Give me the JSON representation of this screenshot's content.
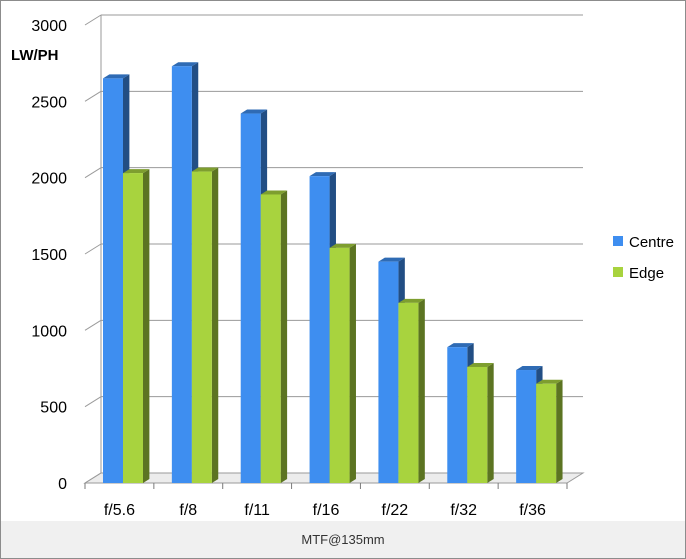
{
  "chart_data": {
    "type": "bar",
    "title": "",
    "xlabel": "",
    "ylabel": "LW/PH",
    "categories": [
      "f/5.6",
      "f/8",
      "f/11",
      "f/16",
      "f/22",
      "f/32",
      "f/36"
    ],
    "series": [
      {
        "name": "Centre",
        "values": [
          2650,
          2730,
          2420,
          2010,
          1450,
          890,
          740
        ],
        "color": "#3e8ef0"
      },
      {
        "name": "Edge",
        "values": [
          2030,
          2040,
          1890,
          1540,
          1180,
          760,
          650
        ],
        "color": "#a8d33e"
      }
    ],
    "ylim": [
      0,
      3000
    ],
    "yticks": [
      0,
      500,
      1000,
      1500,
      2000,
      2500,
      3000
    ],
    "grid": true,
    "legend_position": "right",
    "style": "3d-column"
  },
  "caption": "MTF@135mm"
}
